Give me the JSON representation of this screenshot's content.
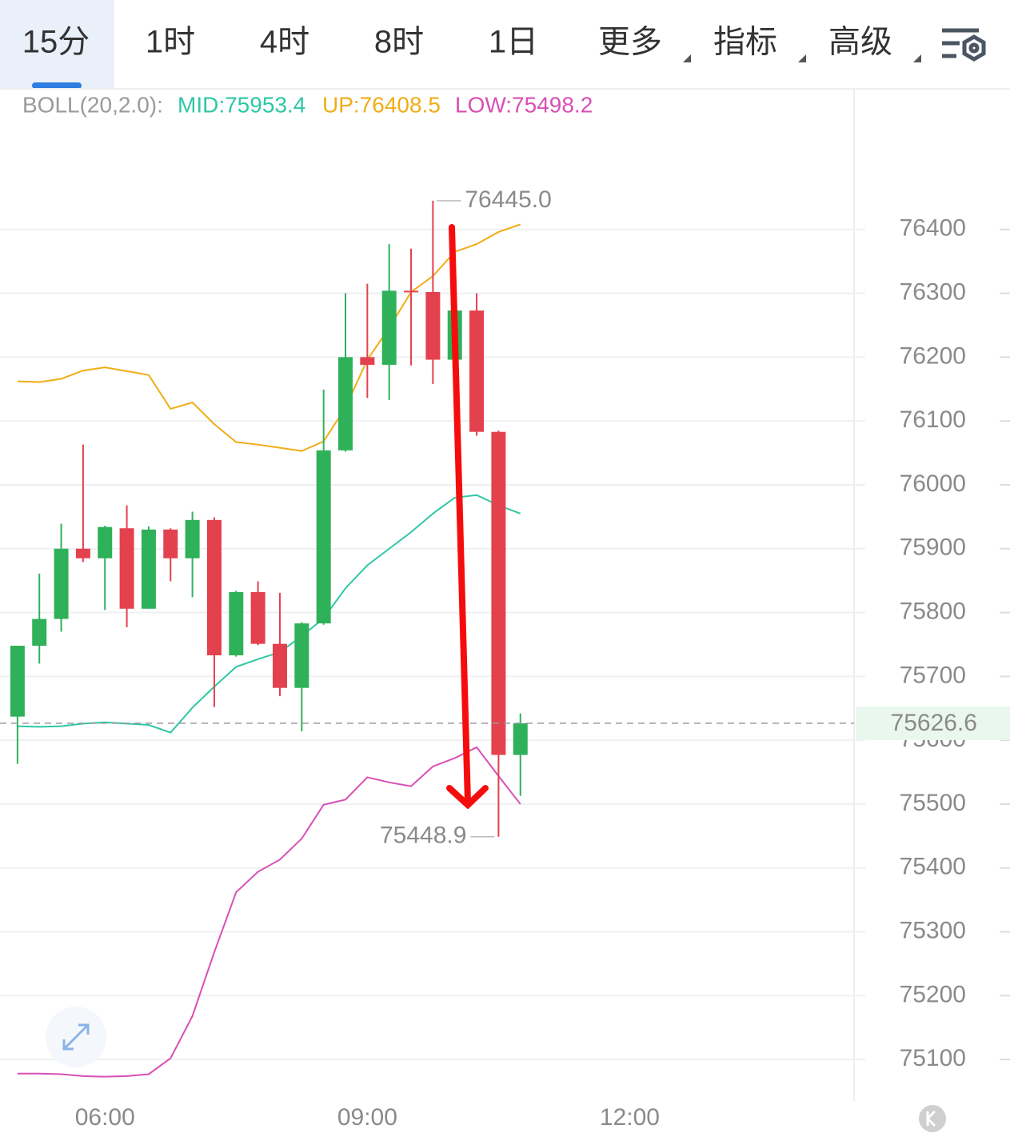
{
  "tabs": [
    "15分",
    "1时",
    "4时",
    "8时",
    "1日",
    "更多",
    "指标",
    "高级"
  ],
  "indicator": {
    "name": "BOLL(20,2.0):",
    "mid": "MID:75953.4",
    "up": "UP:76408.5",
    "low": "LOW:75498.2"
  },
  "chart_data": {
    "type": "candlestick",
    "x": [
      5,
      5.25,
      5.5,
      5.75,
      6,
      6.25,
      6.5,
      6.75,
      7,
      7.25,
      7.5,
      7.75,
      8,
      8.25,
      8.5,
      8.75,
      9,
      9.25,
      9.5,
      9.75,
      10,
      10.25,
      10.5,
      10.75
    ],
    "open": [
      75637,
      75748,
      75790,
      75900,
      75885,
      75932,
      75806,
      75930,
      75885,
      75945,
      75733,
      75832,
      75751,
      75682,
      75783,
      76054,
      76200,
      76188,
      76304,
      76302,
      76196,
      76273,
      76083,
      75577
    ],
    "high": [
      75748,
      75861,
      75939,
      76063,
      75936,
      75968,
      75935,
      75932,
      75958,
      75949,
      75834,
      75849,
      75831,
      75785,
      76149,
      76300,
      76315,
      76377,
      76370,
      76445,
      76275,
      76300,
      76085,
      75642
    ],
    "low": [
      75563,
      75720,
      75770,
      75879,
      75804,
      75777,
      75806,
      75849,
      75824,
      75652,
      75731,
      75749,
      75669,
      75614,
      75781,
      76052,
      76136,
      76133,
      76187,
      76158,
      76194,
      76077,
      75448.9,
      75513
    ],
    "close": [
      75748,
      75790,
      75900,
      75885,
      75934,
      75806,
      75930,
      75885,
      75945,
      75733,
      75832,
      75751,
      75682,
      75783,
      76054,
      76200,
      76188,
      76304,
      76302,
      76196,
      76273,
      76083,
      75577,
      75626.6
    ],
    "up_color": "#2fb15a",
    "down_color": "#e4414f",
    "overlays": [
      {
        "color": "#f0ad16",
        "values": [
          76162,
          76161,
          76166,
          76179,
          76184,
          76178,
          76172,
          76119,
          76129,
          76095,
          76067,
          76063,
          76058,
          76053,
          76068,
          76121,
          76196,
          76246,
          76302,
          76327,
          76365,
          76377,
          76396,
          76408
        ]
      },
      {
        "color": "#2ec7a6",
        "values": [
          75622,
          75621,
          75622,
          75626,
          75628,
          75626,
          75624,
          75612,
          75651,
          75684,
          75715,
          75727,
          75738,
          75763,
          75791,
          75838,
          75874,
          75900,
          75926,
          75955,
          75980,
          75984,
          75968,
          75955
        ]
      },
      {
        "color": "#d94fb5",
        "values": [
          75078,
          75078,
          75077,
          75074,
          75073,
          75074,
          75077,
          75102,
          75168,
          75268,
          75362,
          75394,
          75413,
          75446,
          75499,
          75507,
          75542,
          75534,
          75528,
          75559,
          75572,
          75589,
          75544,
          75500
        ]
      }
    ],
    "annotations": [
      {
        "x": 9.75,
        "value": 76445,
        "label": "76445.0"
      },
      {
        "x": 10.5,
        "value": 75448.9,
        "label": "75448.9"
      }
    ],
    "last_price": {
      "value": 75626.6,
      "label": "75626.6"
    },
    "ylim": [
      75030,
      76619
    ],
    "yticks": [
      75100,
      75200,
      75300,
      75400,
      75500,
      75600,
      75700,
      75800,
      75900,
      76000,
      76100,
      76200,
      76300,
      76400
    ],
    "xlim": [
      4.8,
      14.565
    ],
    "xticks": [
      {
        "value": 6,
        "label": "06:00"
      },
      {
        "value": 9,
        "label": "09:00"
      },
      {
        "value": 12,
        "label": "12:00"
      }
    ],
    "grid": true
  }
}
